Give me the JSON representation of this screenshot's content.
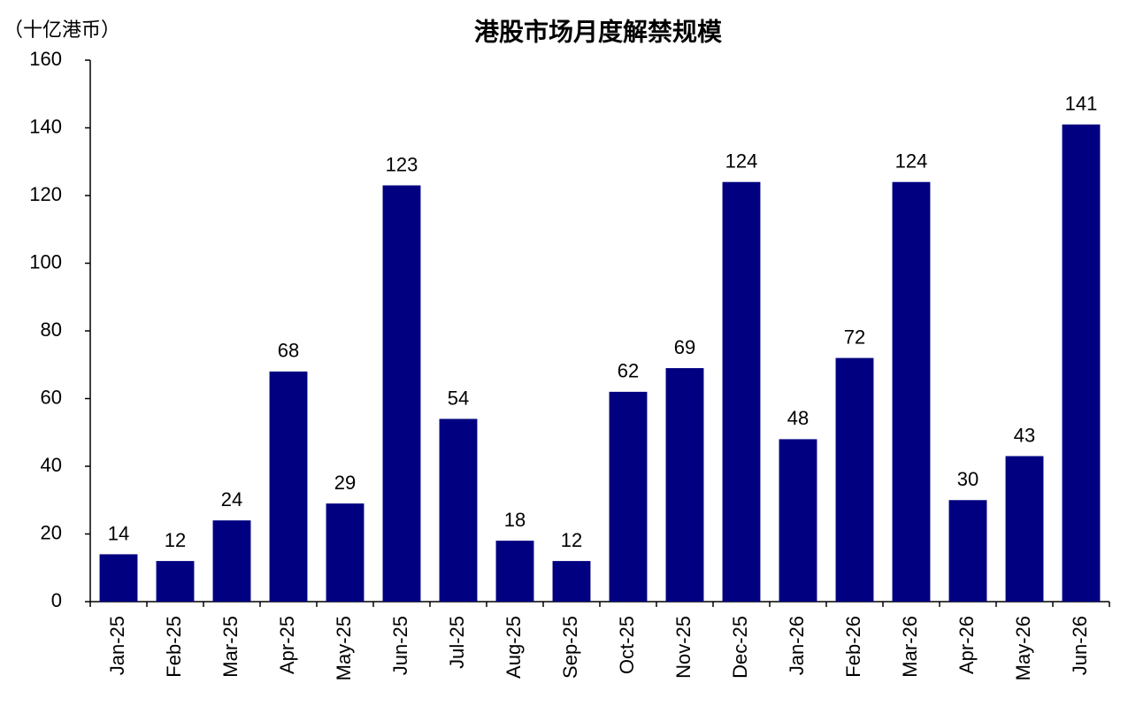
{
  "chart_data": {
    "type": "bar",
    "title": "港股市场月度解禁规模",
    "y_axis_label": "（十亿港币）",
    "categories": [
      "Jan-25",
      "Feb-25",
      "Mar-25",
      "Apr-25",
      "May-25",
      "Jun-25",
      "Jul-25",
      "Aug-25",
      "Sep-25",
      "Oct-25",
      "Nov-25",
      "Dec-25",
      "Jan-26",
      "Feb-26",
      "Mar-26",
      "Apr-26",
      "May-26",
      "Jun-26"
    ],
    "values": [
      14,
      12,
      24,
      68,
      29,
      123,
      54,
      18,
      12,
      62,
      69,
      124,
      48,
      72,
      124,
      30,
      43,
      141
    ],
    "color": "#000080",
    "ylim": [
      0,
      160
    ],
    "yticks": [
      0,
      20,
      40,
      60,
      80,
      100,
      120,
      140,
      160
    ],
    "grid": false
  }
}
